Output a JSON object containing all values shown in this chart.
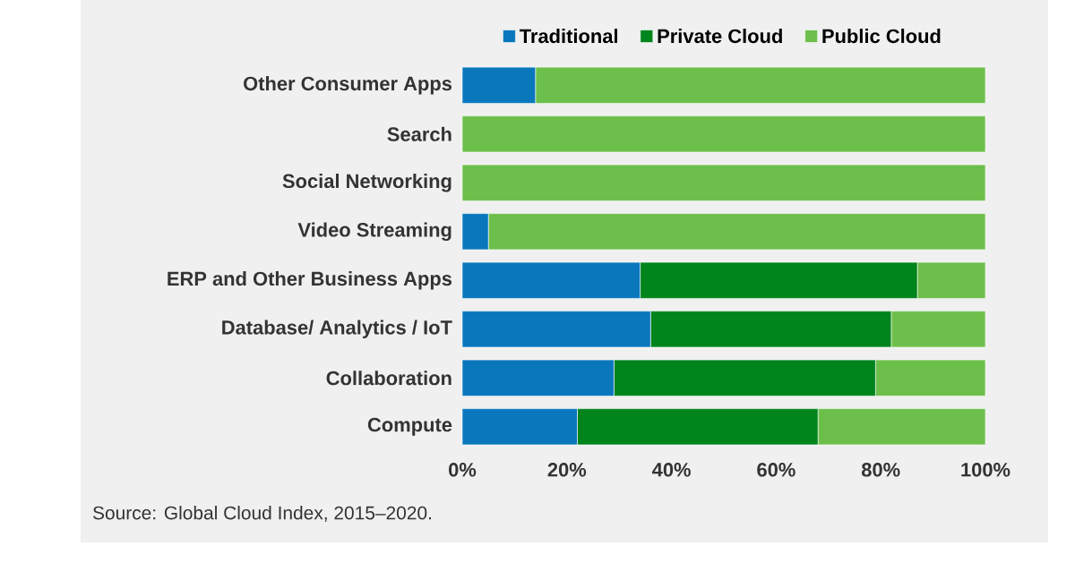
{
  "chart_data": {
    "type": "bar",
    "orientation": "horizontal",
    "stacked": true,
    "categories": [
      "Other Consumer Apps",
      "Search",
      "Social Networking",
      "Video Streaming",
      "ERP and Other Business Apps",
      "Database/ Analytics / IoT",
      "Collaboration",
      "Compute"
    ],
    "series": [
      {
        "name": "Traditional",
        "color": "#0a77bd",
        "values": [
          14,
          0,
          0,
          5,
          34,
          36,
          29,
          22
        ]
      },
      {
        "name": "Private Cloud",
        "color": "#00841c",
        "values": [
          0,
          0,
          0,
          0,
          53,
          46,
          50,
          46
        ]
      },
      {
        "name": "Public Cloud",
        "color": "#6cbf4a",
        "values": [
          86,
          100,
          100,
          95,
          13,
          18,
          21,
          32
        ]
      }
    ],
    "xlim": [
      0,
      100
    ],
    "xticks": [
      {
        "value": 0,
        "label": "0%"
      },
      {
        "value": 20,
        "label": "20%"
      },
      {
        "value": 40,
        "label": "40%"
      },
      {
        "value": 60,
        "label": "60%"
      },
      {
        "value": 80,
        "label": "80%"
      },
      {
        "value": 100,
        "label": "100%"
      }
    ],
    "legend": "top",
    "annotations": [
      "Source: Global Cloud Index, 2015–2020."
    ]
  }
}
